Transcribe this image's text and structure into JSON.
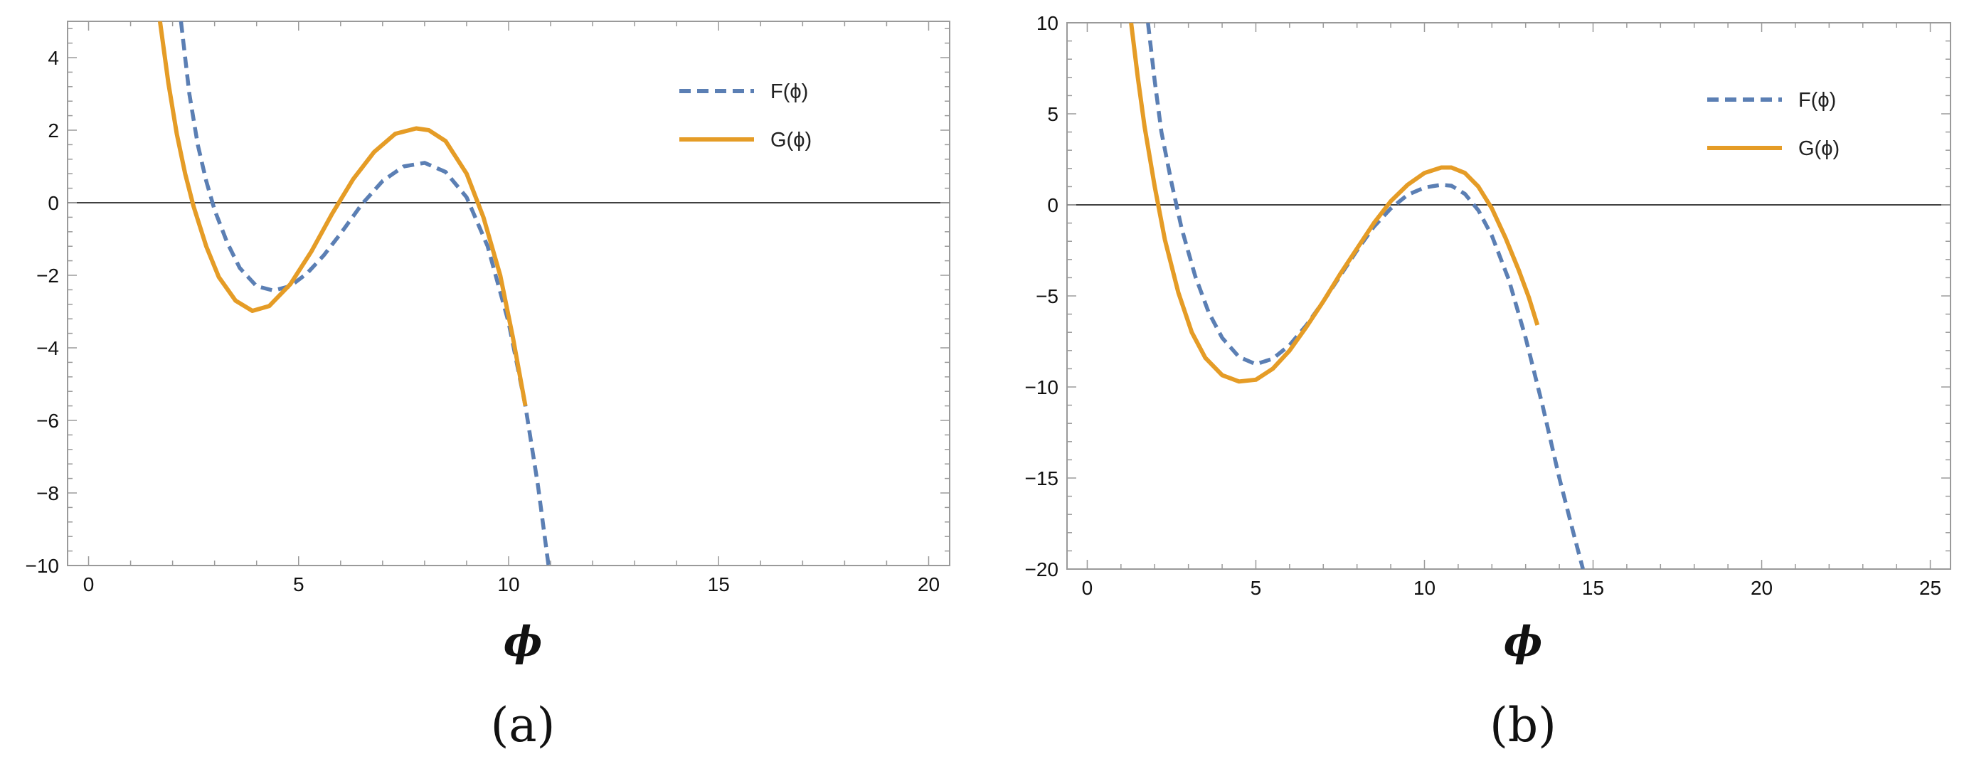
{
  "colors": {
    "F": "#5b7fb4",
    "G": "#e59c26",
    "frame": "#9a9a9a",
    "zero_line": "#000000"
  },
  "chart_data": [
    {
      "type": "line",
      "panel": "(a)",
      "xlabel": "ϕ",
      "ylabel": "",
      "title": "",
      "xlim": [
        -0.5,
        20.5
      ],
      "ylim": [
        -10,
        5
      ],
      "xticks": [
        0,
        5,
        10,
        15,
        20
      ],
      "xtick_labels": [
        "0",
        "5",
        "10",
        "15",
        "20"
      ],
      "yticks": [
        -10,
        -8,
        -6,
        -4,
        -2,
        0,
        2,
        4
      ],
      "ytick_labels": [
        "−10",
        "−8",
        "−6",
        "−4",
        "−2",
        "0",
        "2",
        "4"
      ],
      "grid": false,
      "zero_line": true,
      "legend": "top-right",
      "series": [
        {
          "name": "F(ϕ)",
          "style": "dashed",
          "x": [
            2.2,
            2.4,
            2.6,
            2.8,
            3.0,
            3.3,
            3.6,
            4.0,
            4.4,
            4.8,
            5.2,
            5.6,
            6.0,
            6.5,
            7.0,
            7.5,
            8.0,
            8.5,
            9.0,
            9.5,
            10.0,
            10.4,
            10.7,
            10.95
          ],
          "y": [
            5.0,
            3.0,
            1.6,
            0.6,
            -0.2,
            -1.1,
            -1.8,
            -2.3,
            -2.42,
            -2.3,
            -1.95,
            -1.45,
            -0.85,
            -0.05,
            0.6,
            1.0,
            1.1,
            0.85,
            0.15,
            -1.2,
            -3.3,
            -5.6,
            -7.8,
            -10.0
          ]
        },
        {
          "name": "G(ϕ)",
          "style": "solid",
          "x": [
            1.7,
            1.9,
            2.1,
            2.3,
            2.5,
            2.8,
            3.1,
            3.5,
            3.9,
            4.3,
            4.8,
            5.3,
            5.8,
            6.3,
            6.8,
            7.3,
            7.8,
            8.1,
            8.5,
            9.0,
            9.4,
            9.8,
            10.1,
            10.4
          ],
          "y": [
            5.0,
            3.3,
            1.9,
            0.8,
            -0.1,
            -1.2,
            -2.05,
            -2.7,
            -2.98,
            -2.85,
            -2.25,
            -1.35,
            -0.3,
            0.65,
            1.4,
            1.9,
            2.05,
            2.0,
            1.7,
            0.8,
            -0.4,
            -2.0,
            -3.7,
            -5.6
          ]
        }
      ]
    },
    {
      "type": "line",
      "panel": "(b)",
      "xlabel": "ϕ",
      "ylabel": "",
      "title": "",
      "xlim": [
        -0.6,
        25.6
      ],
      "ylim": [
        -20,
        10
      ],
      "xticks": [
        0,
        5,
        10,
        15,
        20,
        25
      ],
      "xtick_labels": [
        "0",
        "5",
        "10",
        "15",
        "20",
        "25"
      ],
      "yticks": [
        -20,
        -15,
        -10,
        -5,
        0,
        5,
        10
      ],
      "ytick_labels": [
        "−20",
        "−15",
        "−10",
        "−5",
        "0",
        "5",
        "10"
      ],
      "grid": false,
      "zero_line": true,
      "legend": "top-right",
      "series": [
        {
          "name": "F(ϕ)",
          "style": "dashed",
          "x": [
            1.8,
            2.0,
            2.2,
            2.5,
            2.8,
            3.2,
            3.6,
            4.0,
            4.5,
            5.0,
            5.5,
            6.0,
            6.5,
            7.0,
            7.5,
            8.0,
            8.5,
            9.0,
            9.5,
            10.0,
            10.5,
            10.8,
            11.2,
            11.6,
            12.0,
            12.5,
            13.0,
            13.5,
            14.0,
            14.4,
            14.7
          ],
          "y": [
            10.0,
            6.8,
            4.0,
            1.2,
            -1.3,
            -3.9,
            -5.9,
            -7.3,
            -8.35,
            -8.75,
            -8.45,
            -7.7,
            -6.6,
            -5.3,
            -3.9,
            -2.5,
            -1.2,
            -0.2,
            0.55,
            0.95,
            1.1,
            1.05,
            0.6,
            -0.3,
            -1.7,
            -4.1,
            -7.3,
            -11.0,
            -15.0,
            -17.9,
            -20.0
          ]
        },
        {
          "name": "G(ϕ)",
          "style": "solid",
          "x": [
            1.3,
            1.5,
            1.7,
            2.0,
            2.3,
            2.7,
            3.1,
            3.5,
            4.0,
            4.5,
            5.0,
            5.5,
            6.0,
            6.5,
            7.0,
            7.5,
            8.0,
            8.5,
            9.0,
            9.5,
            10.0,
            10.5,
            10.8,
            11.2,
            11.6,
            12.0,
            12.4,
            12.8,
            13.1,
            13.35
          ],
          "y": [
            10.0,
            7.0,
            4.3,
            1.0,
            -1.9,
            -4.8,
            -7.0,
            -8.4,
            -9.35,
            -9.7,
            -9.6,
            -9.0,
            -8.0,
            -6.7,
            -5.3,
            -3.8,
            -2.4,
            -1.0,
            0.2,
            1.1,
            1.75,
            2.05,
            2.05,
            1.75,
            1.0,
            -0.2,
            -1.8,
            -3.6,
            -5.1,
            -6.6
          ]
        }
      ]
    }
  ]
}
